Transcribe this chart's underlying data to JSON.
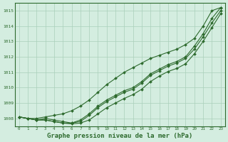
{
  "title": "Graphe pression niveau de la mer (hPa)",
  "xlabel_hours": [
    0,
    1,
    2,
    3,
    4,
    5,
    6,
    7,
    8,
    9,
    10,
    11,
    12,
    13,
    14,
    15,
    16,
    17,
    18,
    19,
    20,
    21,
    22,
    23
  ],
  "ylim": [
    1007.5,
    1015.5
  ],
  "yticks": [
    1008,
    1009,
    1010,
    1011,
    1012,
    1013,
    1014,
    1015
  ],
  "line_upper": [
    1008.1,
    1008.0,
    1008.0,
    1008.1,
    1008.2,
    1008.3,
    1008.5,
    1008.8,
    1009.2,
    1009.7,
    1010.2,
    1010.6,
    1011.0,
    1011.3,
    1011.6,
    1011.9,
    1012.1,
    1012.3,
    1012.5,
    1012.8,
    1013.2,
    1014.0,
    1015.0,
    1015.2
  ],
  "line_mid1": [
    1008.1,
    1008.0,
    1007.9,
    1008.0,
    1007.9,
    1007.8,
    1007.7,
    1007.9,
    1008.3,
    1008.8,
    1009.2,
    1009.5,
    1009.8,
    1010.0,
    1010.4,
    1010.9,
    1011.2,
    1011.5,
    1011.7,
    1012.0,
    1012.7,
    1013.5,
    1014.5,
    1015.2
  ],
  "line_mid2": [
    1008.1,
    1008.0,
    1007.9,
    1007.9,
    1007.8,
    1007.7,
    1007.7,
    1007.8,
    1008.2,
    1008.7,
    1009.1,
    1009.4,
    1009.7,
    1009.9,
    1010.3,
    1010.8,
    1011.1,
    1011.4,
    1011.6,
    1011.9,
    1012.5,
    1013.3,
    1014.2,
    1015.0
  ],
  "line_lower": [
    1008.1,
    1008.0,
    1007.9,
    1007.9,
    1007.8,
    1007.7,
    1007.65,
    1007.7,
    1007.9,
    1008.3,
    1008.7,
    1009.0,
    1009.3,
    1009.55,
    1009.9,
    1010.4,
    1010.75,
    1011.05,
    1011.25,
    1011.55,
    1012.2,
    1013.0,
    1013.9,
    1014.8
  ],
  "line_color": "#2d6a2d",
  "bg_color": "#d4ede0",
  "grid_color": "#aacfba",
  "title_color": "#2d6a2d",
  "title_fontsize": 6.5,
  "marker": "D",
  "marker_size": 2.0,
  "linewidth": 0.8
}
